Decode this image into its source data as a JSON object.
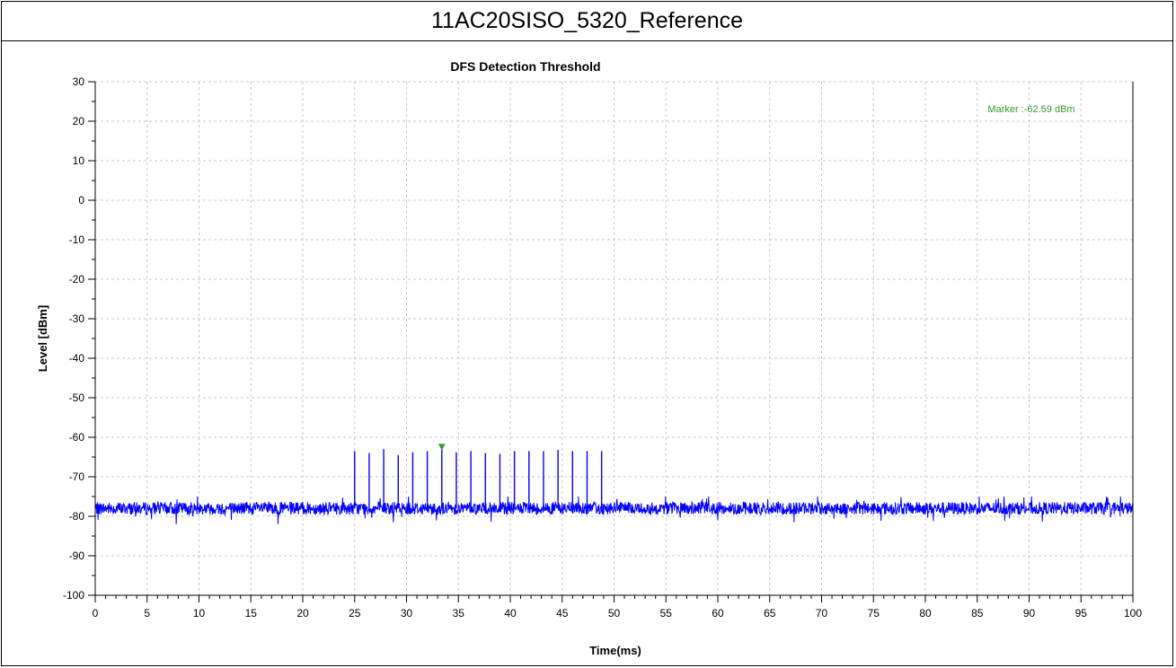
{
  "header": {
    "title": "11AC20SISO_5320_Reference"
  },
  "chart_data": {
    "type": "line",
    "title": "DFS Detection Threshold",
    "xlabel": "Time(ms)",
    "ylabel": "Level [dBm]",
    "xlim": [
      0,
      100
    ],
    "ylim": [
      -100,
      30
    ],
    "x_ticks": [
      0,
      5,
      10,
      15,
      20,
      25,
      30,
      35,
      40,
      45,
      50,
      55,
      60,
      65,
      70,
      75,
      80,
      85,
      90,
      95,
      100
    ],
    "y_ticks": [
      30,
      20,
      10,
      0,
      -10,
      -20,
      -30,
      -40,
      -50,
      -60,
      -70,
      -80,
      -90,
      -100
    ],
    "grid": true,
    "series": [
      {
        "color": "#0000ff",
        "noise_floor_dbm": -78,
        "noise_range_dbm": [
          -82,
          -75
        ],
        "pulses": [
          {
            "x": 25.0,
            "y": -63.5
          },
          {
            "x": 26.4,
            "y": -64.0
          },
          {
            "x": 27.8,
            "y": -63.0
          },
          {
            "x": 29.2,
            "y": -64.5
          },
          {
            "x": 30.6,
            "y": -63.8
          },
          {
            "x": 32.0,
            "y": -63.5
          },
          {
            "x": 33.4,
            "y": -62.6
          },
          {
            "x": 34.8,
            "y": -63.8
          },
          {
            "x": 36.2,
            "y": -63.5
          },
          {
            "x": 37.6,
            "y": -64.0
          },
          {
            "x": 39.0,
            "y": -64.2
          },
          {
            "x": 40.4,
            "y": -63.5
          },
          {
            "x": 41.8,
            "y": -63.5
          },
          {
            "x": 43.2,
            "y": -63.5
          },
          {
            "x": 44.6,
            "y": -63.2
          },
          {
            "x": 46.0,
            "y": -63.5
          },
          {
            "x": 47.4,
            "y": -63.5
          },
          {
            "x": 48.8,
            "y": -63.5
          }
        ]
      }
    ],
    "marker": {
      "x": 33.4,
      "y": -62.59,
      "label": "Marker :-62.59 dBm",
      "color": "#339933"
    }
  }
}
